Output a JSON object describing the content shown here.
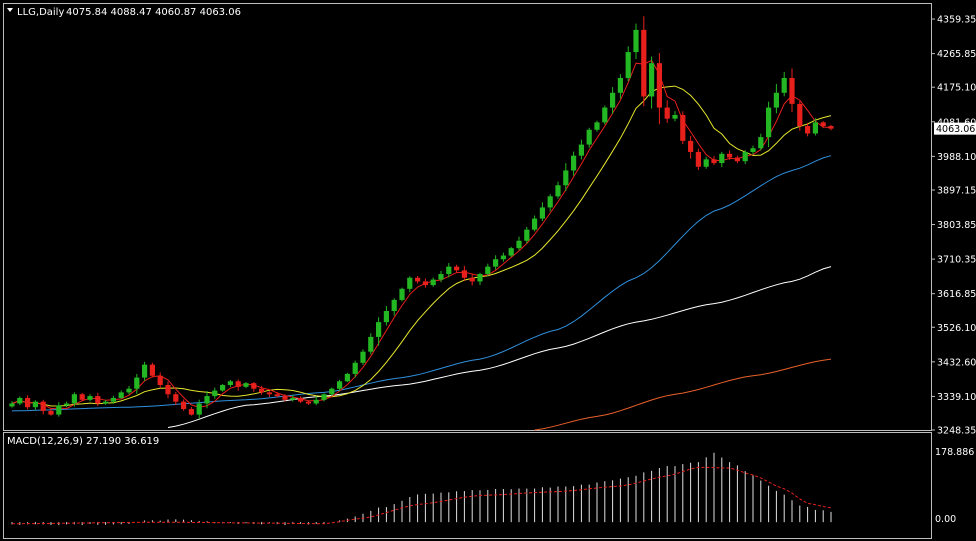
{
  "header": {
    "symbol_label": "LLG,Daily",
    "ohlc": "4075.84 4088.47 4060.87 4063.06"
  },
  "macd_header": {
    "label": "MACD(12,26,9) 27.190 36.619"
  },
  "chart_data": [
    {
      "type": "candlestick",
      "symbol": "LLG",
      "timeframe": "Daily",
      "ylim": [
        3248.35,
        4400
      ],
      "y_ticks": [
        "4359.35",
        "4265.85",
        "4175.10",
        "4081.60",
        "3988.10",
        "3897.15",
        "3803.85",
        "3710.35",
        "3616.85",
        "3526.10",
        "3432.60",
        "3339.10",
        "3248.35"
      ],
      "current_price": "4063.06",
      "colors": {
        "up": "#23b823",
        "down": "#e8201c",
        "ma_fast": "#e8201c",
        "ma_mid": "#e6e62d",
        "ma_blue": "#2f8fdc",
        "ma_white": "#ffffff",
        "ma_orange": "#e8602a"
      },
      "closes": [
        3320,
        3335,
        3310,
        3325,
        3300,
        3290,
        3315,
        3320,
        3345,
        3330,
        3340,
        3320,
        3325,
        3335,
        3350,
        3360,
        3390,
        3425,
        3395,
        3370,
        3345,
        3325,
        3305,
        3290,
        3320,
        3340,
        3355,
        3370,
        3380,
        3365,
        3375,
        3360,
        3350,
        3345,
        3340,
        3330,
        3335,
        3325,
        3320,
        3330,
        3345,
        3360,
        3380,
        3400,
        3430,
        3460,
        3500,
        3540,
        3570,
        3600,
        3630,
        3660,
        3650,
        3640,
        3655,
        3670,
        3690,
        3680,
        3660,
        3650,
        3670,
        3690,
        3710,
        3720,
        3740,
        3760,
        3790,
        3820,
        3850,
        3880,
        3910,
        3950,
        3990,
        4020,
        4060,
        4080,
        4120,
        4160,
        4200,
        4270,
        4330,
        4150,
        4240,
        4120,
        4090,
        4100,
        4030,
        4000,
        3960,
        3980,
        3970,
        3995,
        3985,
        3975,
        4000,
        4010,
        4040,
        4120,
        4160,
        4200,
        4130,
        4070,
        4050,
        4080,
        4070,
        4063.06
      ],
      "ma_blue_anchors": [
        [
          0,
          3300
        ],
        [
          15,
          3310
        ],
        [
          30,
          3330
        ],
        [
          40,
          3350
        ],
        [
          50,
          3390
        ],
        [
          60,
          3440
        ],
        [
          70,
          3520
        ],
        [
          80,
          3660
        ],
        [
          90,
          3840
        ],
        [
          100,
          3950
        ],
        [
          105,
          3990
        ]
      ],
      "ma_white_anchors": [
        [
          20,
          3255
        ],
        [
          30,
          3315
        ],
        [
          40,
          3340
        ],
        [
          50,
          3370
        ],
        [
          60,
          3410
        ],
        [
          70,
          3470
        ],
        [
          80,
          3540
        ],
        [
          90,
          3590
        ],
        [
          100,
          3650
        ],
        [
          105,
          3690
        ]
      ],
      "ma_orange_anchors": [
        [
          67,
          3248.35
        ],
        [
          75,
          3285
        ],
        [
          85,
          3345
        ],
        [
          95,
          3395
        ],
        [
          105,
          3440
        ]
      ]
    },
    {
      "type": "bar",
      "indicator": "MACD",
      "params": "12,26,9",
      "macd": 27.19,
      "signal": 36.619,
      "y_ticks": [
        "178.886",
        "0.00"
      ],
      "ylim": [
        -20,
        178.886
      ],
      "hist_anchors": [
        [
          0,
          -6
        ],
        [
          15,
          -5
        ],
        [
          18,
          6
        ],
        [
          22,
          5
        ],
        [
          27,
          -2
        ],
        [
          35,
          -6
        ],
        [
          40,
          -3
        ],
        [
          43,
          10
        ],
        [
          48,
          40
        ],
        [
          52,
          72
        ],
        [
          58,
          80
        ],
        [
          65,
          85
        ],
        [
          72,
          92
        ],
        [
          78,
          110
        ],
        [
          84,
          142
        ],
        [
          88,
          155
        ],
        [
          90,
          176
        ],
        [
          92,
          155
        ],
        [
          95,
          120
        ],
        [
          98,
          80
        ],
        [
          101,
          44
        ],
        [
          103,
          30
        ],
        [
          105,
          27.19
        ]
      ],
      "signal_anchors": [
        [
          0,
          -4
        ],
        [
          20,
          0
        ],
        [
          30,
          -2
        ],
        [
          40,
          -4
        ],
        [
          45,
          10
        ],
        [
          52,
          45
        ],
        [
          60,
          68
        ],
        [
          70,
          78
        ],
        [
          78,
          92
        ],
        [
          84,
          118
        ],
        [
          88,
          140
        ],
        [
          92,
          138
        ],
        [
          95,
          120
        ],
        [
          99,
          85
        ],
        [
          102,
          48
        ],
        [
          105,
          36.619
        ]
      ]
    }
  ]
}
